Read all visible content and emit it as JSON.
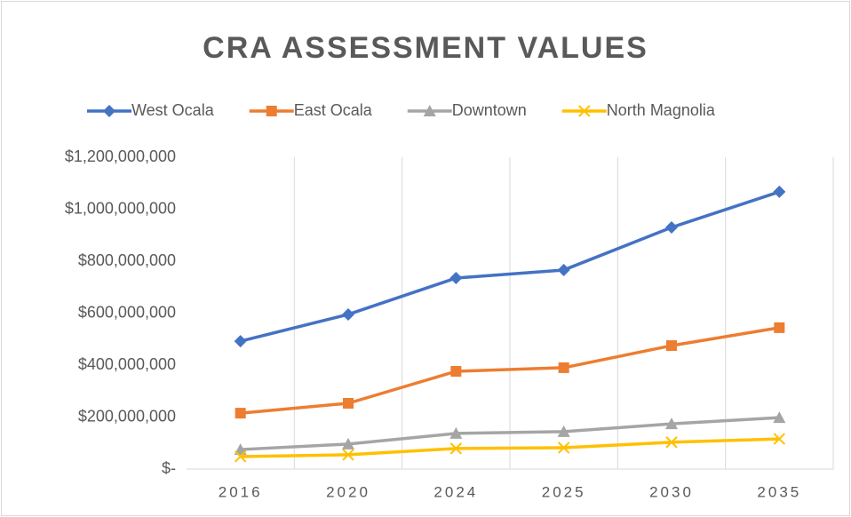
{
  "chart_data": {
    "type": "line",
    "title": "CRA ASSESSMENT VALUES",
    "categories": [
      "2016",
      "2020",
      "2024",
      "2025",
      "2030",
      "2035"
    ],
    "series": [
      {
        "name": "West Ocala",
        "color": "#4472c4",
        "marker": "diamond",
        "values": [
          492000000,
          595000000,
          735000000,
          766000000,
          930000000,
          1067000000
        ]
      },
      {
        "name": "East Ocala",
        "color": "#ed7d31",
        "marker": "square",
        "values": [
          215000000,
          253000000,
          376000000,
          390000000,
          475000000,
          544000000
        ]
      },
      {
        "name": "Downtown",
        "color": "#a5a5a5",
        "marker": "triangle",
        "values": [
          75000000,
          96000000,
          137000000,
          144000000,
          174000000,
          198000000
        ]
      },
      {
        "name": "North Magnolia",
        "color": "#ffc000",
        "marker": "x",
        "values": [
          48000000,
          55000000,
          79000000,
          82000000,
          103000000,
          116000000
        ]
      }
    ],
    "ylim": [
      0,
      1200000000
    ],
    "yticks": [
      {
        "value": 0,
        "label": "$-"
      },
      {
        "value": 200000000,
        "label": "$200,000,000"
      },
      {
        "value": 400000000,
        "label": "$400,000,000"
      },
      {
        "value": 600000000,
        "label": "$600,000,000"
      },
      {
        "value": 800000000,
        "label": "$800,000,000"
      },
      {
        "value": 1000000000,
        "label": "$1,000,000,000"
      },
      {
        "value": 1200000000,
        "label": "$1,200,000,000"
      }
    ],
    "legend": "top"
  }
}
